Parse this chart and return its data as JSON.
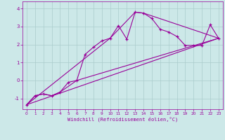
{
  "xlabel": "Windchill (Refroidissement éolien,°C)",
  "bg_color": "#cce8e8",
  "line_color": "#990099",
  "grid_color": "#aacccc",
  "xlim": [
    -0.5,
    23.5
  ],
  "ylim": [
    -1.6,
    4.4
  ],
  "yticks": [
    -1,
    0,
    1,
    2,
    3,
    4
  ],
  "xticks": [
    0,
    1,
    2,
    3,
    4,
    5,
    6,
    7,
    8,
    9,
    10,
    11,
    12,
    13,
    14,
    15,
    16,
    17,
    18,
    19,
    20,
    21,
    22,
    23
  ],
  "series1_x": [
    0,
    1,
    2,
    3,
    4,
    5,
    6,
    7,
    8,
    9,
    10,
    11,
    12,
    13,
    14,
    15,
    16,
    17,
    18,
    19,
    20,
    21,
    22,
    23
  ],
  "series1_y": [
    -1.35,
    -0.85,
    -0.75,
    -0.85,
    -0.65,
    -0.1,
    0.0,
    1.45,
    1.85,
    2.2,
    2.35,
    3.05,
    2.3,
    3.8,
    3.75,
    3.45,
    2.85,
    2.7,
    2.45,
    1.95,
    1.95,
    1.95,
    3.1,
    2.35
  ],
  "series2_x": [
    0,
    23
  ],
  "series2_y": [
    -1.35,
    2.35
  ],
  "series3_x": [
    0,
    1,
    2,
    3,
    4,
    6,
    23
  ],
  "series3_y": [
    -1.35,
    -0.85,
    -0.75,
    -0.85,
    -0.65,
    0.0,
    2.35
  ],
  "series4_x": [
    0,
    10,
    13,
    14,
    23
  ],
  "series4_y": [
    -1.35,
    2.35,
    3.8,
    3.75,
    2.35
  ]
}
